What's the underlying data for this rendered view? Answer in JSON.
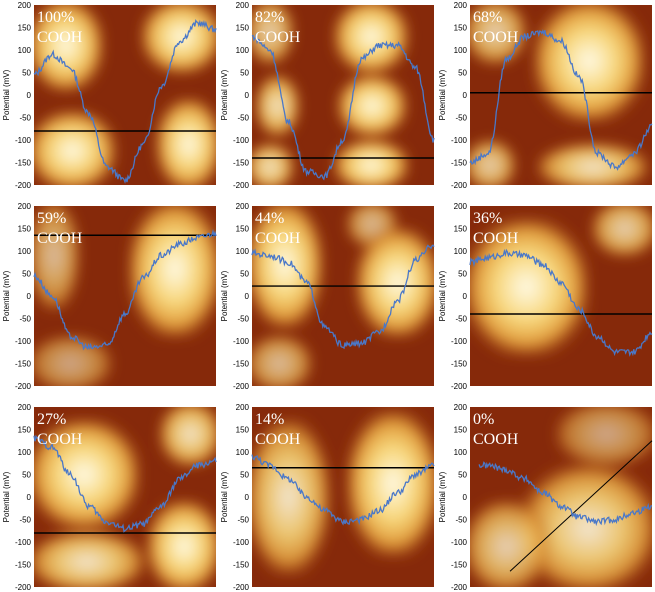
{
  "figure": {
    "axis_label": "Potential (mV)",
    "colors": {
      "trace": "#4a78c8",
      "line": "#000000",
      "caption": "#ffffff"
    },
    "panels": [
      {
        "pct": "100%",
        "chem": "COOH",
        "pattern": "checker",
        "line": {
          "type": "h",
          "mv": -80
        }
      },
      {
        "pct": "82%",
        "chem": "COOH",
        "pattern": "stripes_v",
        "line": {
          "type": "h",
          "mv": -140
        }
      },
      {
        "pct": "68%",
        "chem": "COOH",
        "pattern": "blob_center",
        "line": {
          "type": "h",
          "mv": 5
        }
      },
      {
        "pct": "59%",
        "chem": "COOH",
        "pattern": "blob_right",
        "line": {
          "type": "h",
          "mv": 135
        }
      },
      {
        "pct": "44%",
        "chem": "COOH",
        "pattern": "stripes_v2",
        "line": {
          "type": "h",
          "mv": 22
        }
      },
      {
        "pct": "36%",
        "chem": "COOH",
        "pattern": "blob_left",
        "line": {
          "type": "h",
          "mv": -40
        }
      },
      {
        "pct": "27%",
        "chem": "COOH",
        "pattern": "checker2",
        "line": {
          "type": "h",
          "mv": -80
        }
      },
      {
        "pct": "14%",
        "chem": "COOH",
        "pattern": "diffuse",
        "line": {
          "type": "h",
          "mv": 65
        }
      },
      {
        "pct": "0%",
        "chem": "COOH",
        "pattern": "faint",
        "line": {
          "type": "d",
          "mv": [
            -165,
            125
          ]
        }
      }
    ]
  },
  "chart_data": [
    {
      "type": "line",
      "title": "100% COOH",
      "ylabel": "Potential (mV)",
      "ylim": [
        -200,
        200
      ],
      "yticks": [
        200,
        150,
        100,
        50,
        0,
        -50,
        -100,
        -150,
        -200
      ],
      "x": [
        0,
        0.1,
        0.2,
        0.3,
        0.4,
        0.5,
        0.6,
        0.7,
        0.8,
        0.9,
        1.0
      ],
      "y": [
        45,
        90,
        60,
        -40,
        -160,
        -190,
        -110,
        20,
        120,
        160,
        145
      ],
      "reference_line_mv": -80
    },
    {
      "type": "line",
      "title": "82% COOH",
      "ylabel": "Potential (mV)",
      "ylim": [
        -200,
        200
      ],
      "yticks": [
        200,
        150,
        100,
        50,
        0,
        -50,
        -100,
        -150,
        -200
      ],
      "x": [
        0,
        0.1,
        0.2,
        0.3,
        0.4,
        0.5,
        0.6,
        0.7,
        0.8,
        0.9,
        1.0
      ],
      "y": [
        130,
        100,
        -60,
        -170,
        -180,
        -100,
        80,
        110,
        110,
        60,
        -100
      ],
      "reference_line_mv": -140
    },
    {
      "type": "line",
      "title": "68% COOH",
      "ylabel": "Potential (mV)",
      "ylim": [
        -200,
        200
      ],
      "yticks": [
        200,
        150,
        100,
        50,
        0,
        -50,
        -100,
        -150,
        -200
      ],
      "x": [
        0,
        0.1,
        0.2,
        0.3,
        0.4,
        0.5,
        0.6,
        0.7,
        0.8,
        0.9,
        1.0
      ],
      "y": [
        -150,
        -130,
        80,
        130,
        140,
        120,
        40,
        -130,
        -160,
        -130,
        -70
      ],
      "reference_line_mv": 5
    },
    {
      "type": "line",
      "title": "59% COOH",
      "ylabel": "Potential (mV)",
      "ylim": [
        -200,
        200
      ],
      "yticks": [
        200,
        150,
        100,
        50,
        0,
        -50,
        -100,
        -150,
        -200
      ],
      "x": [
        0,
        0.1,
        0.2,
        0.3,
        0.4,
        0.5,
        0.6,
        0.7,
        0.8,
        0.9,
        1.0
      ],
      "y": [
        45,
        0,
        -90,
        -115,
        -110,
        -40,
        40,
        90,
        115,
        130,
        140
      ],
      "reference_line_mv": 135
    },
    {
      "type": "line",
      "title": "44% COOH",
      "ylabel": "Potential (mV)",
      "ylim": [
        -200,
        200
      ],
      "yticks": [
        200,
        150,
        100,
        50,
        0,
        -50,
        -100,
        -150,
        -200
      ],
      "x": [
        0,
        0.1,
        0.2,
        0.3,
        0.4,
        0.5,
        0.6,
        0.7,
        0.8,
        0.9,
        1.0
      ],
      "y": [
        95,
        90,
        75,
        30,
        -70,
        -110,
        -105,
        -80,
        -10,
        80,
        115
      ],
      "reference_line_mv": 22
    },
    {
      "type": "line",
      "title": "36% COOH",
      "ylabel": "Potential (mV)",
      "ylim": [
        -200,
        200
      ],
      "yticks": [
        200,
        150,
        100,
        50,
        0,
        -50,
        -100,
        -150,
        -200
      ],
      "x": [
        0,
        0.1,
        0.2,
        0.3,
        0.4,
        0.5,
        0.6,
        0.7,
        0.8,
        0.9,
        1.0
      ],
      "y": [
        75,
        85,
        95,
        90,
        70,
        30,
        -30,
        -90,
        -125,
        -125,
        -80
      ],
      "reference_line_mv": -40
    },
    {
      "type": "line",
      "title": "27% COOH",
      "ylabel": "Potential (mV)",
      "ylim": [
        -200,
        200
      ],
      "yticks": [
        200,
        150,
        100,
        50,
        0,
        -50,
        -100,
        -150,
        -200
      ],
      "x": [
        0,
        0.1,
        0.2,
        0.3,
        0.4,
        0.5,
        0.6,
        0.7,
        0.8,
        0.9,
        1.0
      ],
      "y": [
        130,
        110,
        50,
        -20,
        -55,
        -70,
        -60,
        -20,
        40,
        70,
        80
      ],
      "reference_line_mv": -80
    },
    {
      "type": "line",
      "title": "14% COOH",
      "ylabel": "Potential (mV)",
      "ylim": [
        -200,
        200
      ],
      "yticks": [
        200,
        150,
        100,
        50,
        0,
        -50,
        -100,
        -150,
        -200
      ],
      "x": [
        0,
        0.1,
        0.2,
        0.3,
        0.4,
        0.5,
        0.6,
        0.7,
        0.8,
        0.9,
        1.0
      ],
      "y": [
        90,
        70,
        40,
        0,
        -30,
        -55,
        -50,
        -30,
        10,
        50,
        70
      ],
      "reference_line_mv": 65
    },
    {
      "type": "line",
      "title": "0% COOH",
      "ylabel": "Potential (mV)",
      "ylim": [
        -200,
        200
      ],
      "yticks": [
        200,
        150,
        100,
        50,
        0,
        -50,
        -100,
        -150,
        -200
      ],
      "x": [
        0,
        0.1,
        0.2,
        0.3,
        0.4,
        0.5,
        0.6,
        0.7,
        0.8,
        0.9,
        1.0
      ],
      "y": [
        70,
        70,
        60,
        40,
        10,
        -20,
        -45,
        -55,
        -50,
        -35,
        -20
      ],
      "reference_line_mv": [
        -165,
        125
      ]
    }
  ]
}
